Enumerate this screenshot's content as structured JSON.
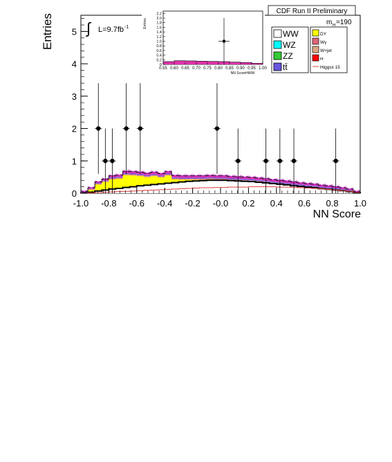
{
  "header": {
    "experiment": "CDF Run II Preliminary",
    "mass_label": "m",
    "mass_sub": "H",
    "mass_value": "=190",
    "lumi_symbol": "∫",
    "lumi_text": "L=9.7fb",
    "lumi_exp": "-1"
  },
  "legend": {
    "left": [
      {
        "name": "WW",
        "color": "#ffffff"
      },
      {
        "name": "WZ",
        "color": "#00ffff"
      },
      {
        "name": "ZZ",
        "color": "#33cc33"
      },
      {
        "name": "tt̄",
        "color": "#6655dd"
      }
    ],
    "right": [
      {
        "name": "DY",
        "color": "#ffff00"
      },
      {
        "name": "Wγ",
        "color": "#dd6677"
      },
      {
        "name": "W+jet",
        "color": "#dda880"
      },
      {
        "name": "H",
        "color": "#ff0000"
      },
      {
        "name": "Higgsx 15",
        "color": "#e04040",
        "line": true
      }
    ]
  },
  "chart_data": [
    {
      "type": "bar",
      "xlabel": "NN Score",
      "ylabel": "Entries",
      "xlim": [
        -1.0,
        1.0
      ],
      "ylim": [
        0,
        5.5
      ],
      "xticks": [
        "-1.0",
        "-0.8",
        "-0.6",
        "-0.4",
        "-0.2",
        "-0.0",
        "0.2",
        "0.4",
        "0.6",
        "0.8",
        "1.0"
      ],
      "xtick_values": [
        -1.0,
        -0.8,
        -0.6,
        -0.4,
        -0.2,
        0.0,
        0.2,
        0.4,
        0.6,
        0.8,
        1.0
      ],
      "yticks": [
        "0",
        "1",
        "2",
        "3",
        "4",
        "5"
      ],
      "ytick_values": [
        0,
        1,
        2,
        3,
        4,
        5
      ],
      "bin_edges": [
        -1.0,
        -0.95,
        -0.9,
        -0.85,
        -0.8,
        -0.75,
        -0.7,
        -0.65,
        -0.6,
        -0.55,
        -0.5,
        -0.45,
        -0.4,
        -0.35,
        -0.3,
        -0.25,
        -0.2,
        -0.15,
        -0.1,
        -0.05,
        0.0,
        0.05,
        0.1,
        0.15,
        0.2,
        0.25,
        0.3,
        0.35,
        0.4,
        0.45,
        0.5,
        0.55,
        0.6,
        0.65,
        0.7,
        0.75,
        0.8,
        0.85,
        0.9,
        0.95,
        1.0
      ],
      "stack": [
        {
          "name": "WW",
          "color": "#ffffff",
          "values": [
            0.01,
            0.03,
            0.07,
            0.1,
            0.13,
            0.15,
            0.18,
            0.2,
            0.23,
            0.25,
            0.27,
            0.29,
            0.31,
            0.33,
            0.35,
            0.37,
            0.38,
            0.39,
            0.4,
            0.4,
            0.4,
            0.39,
            0.38,
            0.37,
            0.36,
            0.34,
            0.32,
            0.3,
            0.28,
            0.26,
            0.23,
            0.21,
            0.19,
            0.17,
            0.14,
            0.12,
            0.1,
            0.08,
            0.05,
            0.02
          ]
        },
        {
          "name": "DY",
          "color": "#ffff00",
          "values": [
            0.02,
            0.08,
            0.2,
            0.25,
            0.3,
            0.3,
            0.38,
            0.35,
            0.3,
            0.25,
            0.26,
            0.2,
            0.24,
            0.1,
            0.07,
            0.05,
            0.04,
            0.03,
            0.03,
            0.02,
            0.02,
            0.01,
            0.01,
            0.01,
            0.01,
            0.01,
            0.01,
            0.0,
            0.0,
            0.0,
            0.0,
            0.0,
            0.0,
            0.0,
            0.0,
            0.0,
            0.0,
            0.0,
            0.0,
            0.0
          ]
        },
        {
          "name": "Wγ",
          "color": "#dd6677",
          "values": [
            0.01,
            0.02,
            0.02,
            0.02,
            0.02,
            0.02,
            0.02,
            0.02,
            0.02,
            0.02,
            0.02,
            0.02,
            0.02,
            0.02,
            0.02,
            0.02,
            0.02,
            0.02,
            0.02,
            0.02,
            0.02,
            0.02,
            0.02,
            0.02,
            0.02,
            0.02,
            0.02,
            0.02,
            0.02,
            0.02,
            0.02,
            0.02,
            0.02,
            0.02,
            0.02,
            0.02,
            0.02,
            0.02,
            0.02,
            0.01
          ]
        },
        {
          "name": "W+jet",
          "color": "#dda880",
          "values": [
            0.0,
            0.01,
            0.01,
            0.01,
            0.01,
            0.01,
            0.01,
            0.01,
            0.01,
            0.01,
            0.01,
            0.01,
            0.01,
            0.01,
            0.01,
            0.01,
            0.01,
            0.01,
            0.01,
            0.01,
            0.01,
            0.01,
            0.01,
            0.01,
            0.01,
            0.01,
            0.01,
            0.01,
            0.01,
            0.01,
            0.01,
            0.01,
            0.01,
            0.01,
            0.01,
            0.01,
            0.01,
            0.01,
            0.01,
            0.0
          ]
        },
        {
          "name": "tt̄",
          "color": "#6655dd",
          "values": [
            0.01,
            0.01,
            0.02,
            0.02,
            0.03,
            0.03,
            0.03,
            0.03,
            0.03,
            0.03,
            0.03,
            0.03,
            0.03,
            0.03,
            0.03,
            0.03,
            0.03,
            0.03,
            0.03,
            0.03,
            0.03,
            0.03,
            0.03,
            0.03,
            0.03,
            0.03,
            0.03,
            0.03,
            0.03,
            0.03,
            0.03,
            0.03,
            0.03,
            0.03,
            0.03,
            0.03,
            0.03,
            0.02,
            0.02,
            0.01
          ]
        },
        {
          "name": "H",
          "color": "#dd33aa",
          "values": [
            0.01,
            0.02,
            0.03,
            0.04,
            0.05,
            0.05,
            0.06,
            0.06,
            0.06,
            0.06,
            0.06,
            0.06,
            0.06,
            0.06,
            0.06,
            0.06,
            0.06,
            0.06,
            0.06,
            0.06,
            0.06,
            0.06,
            0.06,
            0.06,
            0.06,
            0.06,
            0.06,
            0.06,
            0.06,
            0.06,
            0.06,
            0.05,
            0.05,
            0.05,
            0.05,
            0.05,
            0.04,
            0.04,
            0.03,
            0.02
          ]
        }
      ],
      "higgs_x15": [
        0.0,
        0.01,
        0.02,
        0.03,
        0.04,
        0.05,
        0.06,
        0.07,
        0.08,
        0.09,
        0.1,
        0.11,
        0.12,
        0.13,
        0.14,
        0.15,
        0.16,
        0.17,
        0.17,
        0.18,
        0.18,
        0.19,
        0.19,
        0.19,
        0.2,
        0.2,
        0.2,
        0.2,
        0.19,
        0.19,
        0.18,
        0.17,
        0.16,
        0.15,
        0.13,
        0.12,
        0.1,
        0.08,
        0.06,
        0.03
      ],
      "data_points": [
        {
          "x": -0.875,
          "y": 2,
          "err": 1.4
        },
        {
          "x": -0.825,
          "y": 1,
          "err": 1.0
        },
        {
          "x": -0.775,
          "y": 1,
          "err": 1.0
        },
        {
          "x": -0.675,
          "y": 2,
          "err": 1.4
        },
        {
          "x": -0.575,
          "y": 2,
          "err": 1.4
        },
        {
          "x": -0.025,
          "y": 2,
          "err": 1.4
        },
        {
          "x": 0.125,
          "y": 1,
          "err": 1.0
        },
        {
          "x": 0.325,
          "y": 1,
          "err": 1.0
        },
        {
          "x": 0.425,
          "y": 1,
          "err": 1.0
        },
        {
          "x": 0.525,
          "y": 1,
          "err": 1.0
        },
        {
          "x": 0.825,
          "y": 1,
          "err": 1.0
        }
      ]
    },
    {
      "type": "bar",
      "xlabel": "NN ScoreHWW",
      "ylabel": "Entries",
      "xlim": [
        0.55,
        1.0
      ],
      "ylim": [
        0,
        2.3
      ],
      "xticks": [
        "0.55",
        "0.60",
        "0.65",
        "0.70",
        "0.75",
        "0.80",
        "0.85",
        "0.90",
        "0.95",
        "1.00"
      ],
      "xtick_values": [
        0.55,
        0.6,
        0.65,
        0.7,
        0.75,
        0.8,
        0.85,
        0.9,
        0.95,
        1.0
      ],
      "yticks": [
        "0",
        "0.2",
        "0.4",
        "0.6",
        "0.8",
        "1.0",
        "1.2",
        "1.4",
        "1.6",
        "1.8",
        "2.0",
        "2.2"
      ],
      "ytick_values": [
        0,
        0.2,
        0.4,
        0.6,
        0.8,
        1.0,
        1.2,
        1.4,
        1.6,
        1.8,
        2.0,
        2.2
      ],
      "bin_edges": [
        0.55,
        0.6,
        0.65,
        0.7,
        0.75,
        0.8,
        0.85,
        0.9,
        0.95,
        1.0
      ],
      "stack_total": [
        0.12,
        0.16,
        0.15,
        0.14,
        0.13,
        0.12,
        0.1,
        0.08,
        0.05
      ],
      "stack_color": "#dd33aa",
      "data_points": [
        {
          "x": 0.825,
          "y": 1,
          "err": 1.0
        }
      ]
    }
  ]
}
